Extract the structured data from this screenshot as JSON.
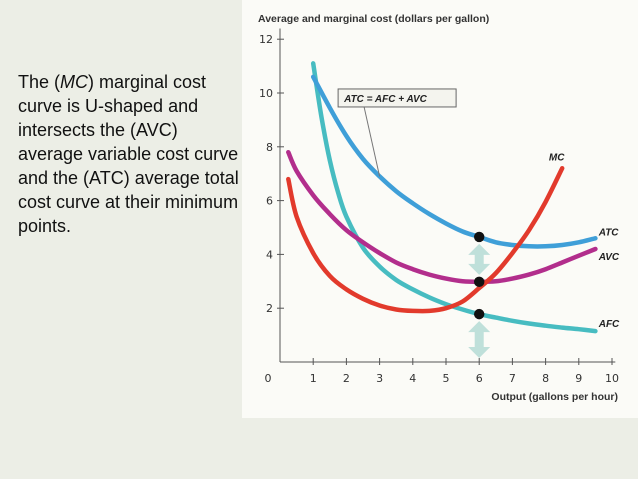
{
  "slide": {
    "text_before": "The (",
    "text_emph": "MC",
    "text_after": ") marginal cost curve is U-shaped and intersects the (AVC) average variable cost curve and the (ATC) average total cost curve at their minimum points."
  },
  "colors": {
    "atc": "#3f9fd8",
    "avc": "#b22e8c",
    "mc": "#e23a2c",
    "afc": "#47bcc1",
    "arrow": "#bfe0da",
    "axis": "#555555",
    "dot": "#111111"
  },
  "chart_data": {
    "type": "line",
    "title": "",
    "ylabel": "Average and marginal cost (dollars per gallon)",
    "xlabel": "Output (gallons per hour)",
    "xlim": [
      0,
      10
    ],
    "ylim": [
      0,
      12
    ],
    "x_ticks": [
      0,
      1,
      2,
      3,
      4,
      5,
      6,
      7,
      8,
      9,
      10
    ],
    "y_ticks": [
      2,
      4,
      6,
      8,
      10,
      12
    ],
    "grid": false,
    "series": [
      {
        "name": "ATC",
        "color_key": "atc",
        "x": [
          1.0,
          1.5,
          2.0,
          2.5,
          3.0,
          3.5,
          4.0,
          4.5,
          5.0,
          5.5,
          6.0,
          6.5,
          7.0,
          7.5,
          8.0,
          8.5,
          9.0,
          9.5
        ],
        "y": [
          10.6,
          9.45,
          8.4,
          7.55,
          6.9,
          6.35,
          5.9,
          5.5,
          5.15,
          4.85,
          4.65,
          4.45,
          4.35,
          4.3,
          4.3,
          4.35,
          4.45,
          4.6
        ]
      },
      {
        "name": "AVC",
        "color_key": "avc",
        "x": [
          0.25,
          0.5,
          1.0,
          1.5,
          2.0,
          2.5,
          3.0,
          3.5,
          4.0,
          4.5,
          5.0,
          5.5,
          6.0,
          6.5,
          7.0,
          7.5,
          8.0,
          8.5,
          9.0,
          9.5
        ],
        "y": [
          7.8,
          7.1,
          6.2,
          5.5,
          4.9,
          4.45,
          4.05,
          3.7,
          3.45,
          3.25,
          3.1,
          3.0,
          2.98,
          3.0,
          3.1,
          3.25,
          3.45,
          3.7,
          3.95,
          4.2
        ]
      },
      {
        "name": "MC",
        "color_key": "mc",
        "x": [
          0.25,
          0.5,
          1.0,
          1.5,
          2.0,
          2.5,
          3.0,
          3.5,
          4.0,
          4.5,
          5.0,
          5.5,
          6.0,
          6.5,
          7.0,
          7.5,
          8.0,
          8.5
        ],
        "y": [
          6.8,
          5.4,
          4.05,
          3.2,
          2.7,
          2.35,
          2.1,
          1.95,
          1.9,
          1.9,
          2.0,
          2.25,
          2.75,
          3.3,
          4.05,
          4.9,
          5.95,
          7.2
        ]
      },
      {
        "name": "AFC",
        "color_key": "afc",
        "x": [
          1.0,
          1.25,
          1.5,
          1.75,
          2.0,
          2.5,
          3.0,
          3.5,
          4.0,
          4.5,
          5.0,
          5.5,
          6.0,
          6.5,
          7.0,
          7.5,
          8.0,
          8.5,
          9.0,
          9.5
        ],
        "y": [
          11.1,
          9.1,
          7.5,
          6.3,
          5.4,
          4.25,
          3.55,
          3.05,
          2.7,
          2.4,
          2.15,
          1.95,
          1.78,
          1.65,
          1.53,
          1.43,
          1.35,
          1.28,
          1.22,
          1.15
        ]
      }
    ],
    "curve_labels": [
      {
        "text": "ATC",
        "x": 9.6,
        "y": 4.7
      },
      {
        "text": "AVC",
        "x": 9.6,
        "y": 3.8
      },
      {
        "text": "MC",
        "x": 8.1,
        "y": 7.5
      },
      {
        "text": "AFC",
        "x": 9.6,
        "y": 1.3
      }
    ],
    "callout": {
      "text": "ATC = AFC + AVC",
      "target_x": 3.0,
      "target_y": 6.9,
      "box_x": 1.75,
      "box_y": 10.15
    },
    "points": [
      {
        "x": 6,
        "y": 4.65
      },
      {
        "x": 6,
        "y": 2.98
      },
      {
        "x": 6,
        "y": 1.78
      }
    ]
  }
}
